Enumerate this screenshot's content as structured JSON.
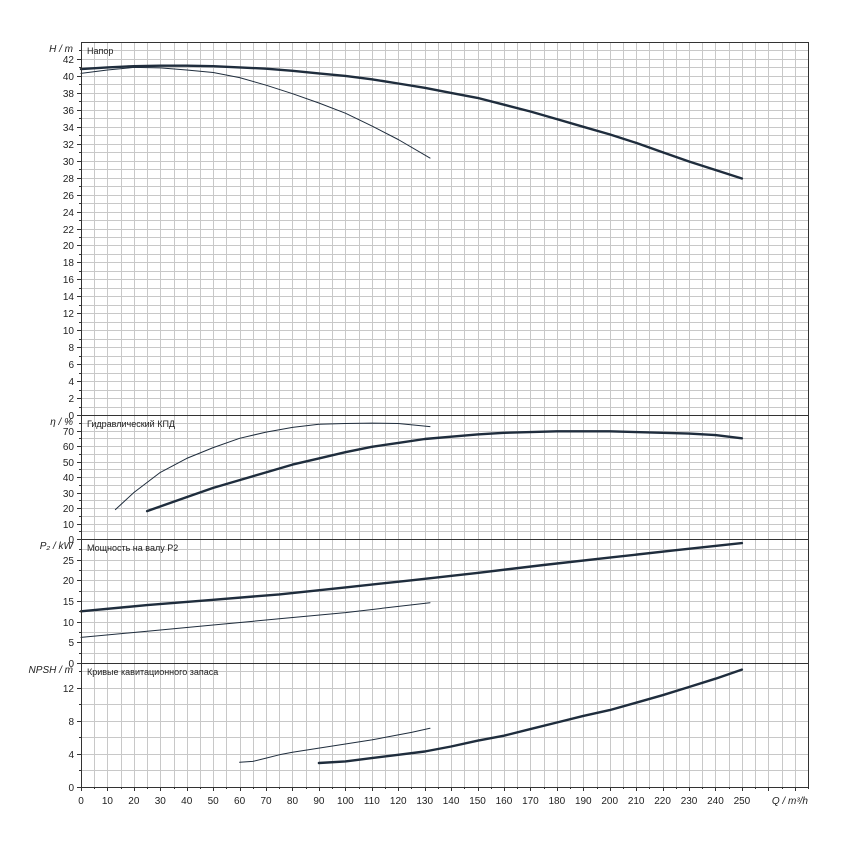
{
  "chart_data": [
    {
      "type": "line",
      "title": "Напор",
      "ylabel": "H / m",
      "xlabel": "Q / m³/h",
      "xlim": [
        0,
        275
      ],
      "ylim": [
        0,
        44
      ],
      "yticks": [
        0,
        2,
        4,
        6,
        8,
        10,
        12,
        14,
        16,
        18,
        20,
        22,
        24,
        26,
        28,
        30,
        32,
        34,
        36,
        38,
        40,
        42
      ],
      "grid": true,
      "series": [
        {
          "weight": "bold",
          "x": [
            0,
            10,
            20,
            30,
            40,
            50,
            60,
            70,
            80,
            90,
            100,
            110,
            120,
            130,
            140,
            150,
            160,
            170,
            180,
            190,
            200,
            210,
            220,
            230,
            240,
            250
          ],
          "y": [
            40.8,
            41.0,
            41.15,
            41.2,
            41.2,
            41.15,
            41.0,
            40.85,
            40.6,
            40.3,
            40.0,
            39.6,
            39.1,
            38.6,
            38.0,
            37.4,
            36.6,
            35.8,
            34.9,
            34.0,
            33.1,
            32.1,
            31.0,
            29.9,
            28.9,
            27.9
          ]
        },
        {
          "weight": "thin",
          "x": [
            0,
            10,
            20,
            30,
            40,
            50,
            60,
            70,
            80,
            90,
            100,
            110,
            120,
            132
          ],
          "y": [
            40.3,
            40.7,
            41.0,
            40.95,
            40.7,
            40.4,
            39.8,
            38.9,
            37.9,
            36.8,
            35.6,
            34.1,
            32.5,
            30.3
          ]
        }
      ]
    },
    {
      "type": "line",
      "title": "Гидравлический КПД",
      "ylabel": "η / %",
      "ylim": [
        0,
        80
      ],
      "yticks": [
        0,
        10,
        20,
        30,
        40,
        50,
        60,
        70
      ],
      "grid": true,
      "series": [
        {
          "weight": "bold",
          "x": [
            25,
            40,
            50,
            60,
            70,
            80,
            90,
            100,
            110,
            120,
            130,
            140,
            150,
            160,
            170,
            180,
            190,
            200,
            210,
            220,
            230,
            240,
            250
          ],
          "y": [
            18,
            27,
            33,
            38,
            43,
            48,
            52,
            56,
            59.5,
            62,
            64.5,
            66,
            67.5,
            68.5,
            69,
            69.5,
            69.5,
            69.5,
            69,
            68.5,
            68,
            67,
            65
          ]
        },
        {
          "weight": "thin",
          "x": [
            13,
            20,
            30,
            40,
            50,
            60,
            70,
            80,
            90,
            100,
            110,
            120,
            132
          ],
          "y": [
            19,
            30,
            43,
            52,
            59,
            65,
            69,
            72,
            74,
            74.5,
            74.8,
            74.5,
            72.5
          ]
        }
      ]
    },
    {
      "type": "line",
      "title": "Мощность на валу P2",
      "ylabel": "P₂ / kW",
      "ylim": [
        0,
        30
      ],
      "yticks": [
        0,
        5,
        10,
        15,
        20,
        25
      ],
      "grid": true,
      "series": [
        {
          "weight": "bold",
          "x": [
            0,
            25,
            50,
            75,
            100,
            125,
            150,
            175,
            200,
            225,
            250
          ],
          "y": [
            12.5,
            14.0,
            15.3,
            16.6,
            18.3,
            20.0,
            21.8,
            23.7,
            25.5,
            27.3,
            29.0
          ]
        },
        {
          "weight": "thin",
          "x": [
            0,
            25,
            50,
            75,
            100,
            132
          ],
          "y": [
            6.2,
            7.7,
            9.2,
            10.7,
            12.2,
            14.6
          ]
        }
      ]
    },
    {
      "type": "line",
      "title": "Кривые кавитационного запаса",
      "ylabel": "NPSH / m",
      "ylim": [
        0,
        15
      ],
      "yticks": [
        0,
        4,
        8,
        12
      ],
      "grid": true,
      "xticks": [
        0,
        10,
        20,
        30,
        40,
        50,
        60,
        70,
        80,
        90,
        100,
        110,
        120,
        130,
        140,
        150,
        160,
        170,
        180,
        190,
        200,
        210,
        220,
        230,
        240,
        250
      ],
      "series": [
        {
          "weight": "bold",
          "x": [
            90,
            100,
            110,
            120,
            130,
            140,
            150,
            160,
            170,
            180,
            190,
            200,
            210,
            220,
            230,
            240,
            250
          ],
          "y": [
            2.9,
            3.1,
            3.5,
            3.9,
            4.3,
            4.9,
            5.6,
            6.2,
            7.0,
            7.8,
            8.6,
            9.3,
            10.2,
            11.1,
            12.1,
            13.1,
            14.2
          ]
        },
        {
          "weight": "thin",
          "x": [
            60,
            65,
            70,
            75,
            80,
            90,
            100,
            110,
            120,
            125,
            132
          ],
          "y": [
            3.0,
            3.1,
            3.5,
            3.9,
            4.2,
            4.7,
            5.2,
            5.7,
            6.3,
            6.6,
            7.1
          ]
        }
      ]
    }
  ]
}
